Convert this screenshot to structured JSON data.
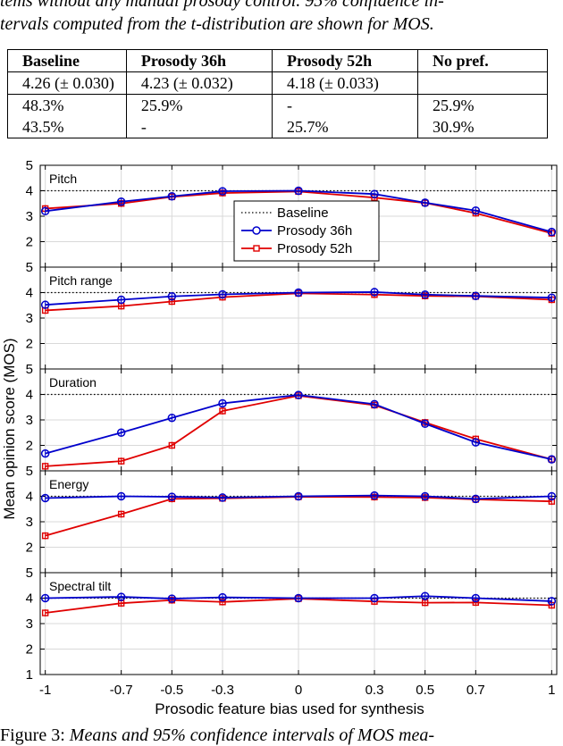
{
  "caption_top": {
    "line1": "tems without any manual prosody control. 95% confidence in-",
    "line2": "tervals computed from the t-distribution are shown for MOS."
  },
  "table": {
    "headers": [
      "Baseline",
      "Prosody 36h",
      "Prosody 52h",
      "No pref."
    ],
    "rows": [
      [
        "4.26 (± 0.030)",
        "4.23 (± 0.032)",
        "4.18 (± 0.033)",
        ""
      ],
      [
        "48.3%",
        "25.9%",
        "-",
        "25.9%"
      ],
      [
        "43.5%",
        "-",
        "25.7%",
        "30.9%"
      ]
    ]
  },
  "caption_bottom": {
    "prefix": "Figure 3:",
    "text": "Means and 95% confidence intervals of MOS mea-"
  },
  "chart_data": {
    "type": "line",
    "xlabel": "Prosodic feature bias used for synthesis",
    "ylabel": "Mean opinion score (MOS)",
    "x": [
      -1,
      -0.7,
      -0.5,
      -0.3,
      0,
      0.3,
      0.5,
      0.7,
      1
    ],
    "x_tick_labels": [
      "-1",
      "-0.7",
      "-0.5",
      "-0.3",
      "0",
      "0.3",
      "0.5",
      "0.7",
      "1"
    ],
    "xlim": [
      -1.02,
      1.02
    ],
    "ylim": [
      1,
      5
    ],
    "y_tick_labels": [
      "1",
      "2",
      "3",
      "4",
      "5"
    ],
    "grid": true,
    "legend": {
      "placement": "inside first panel, center-right",
      "entries": [
        "Baseline",
        "Prosody 36h",
        "Prosody 52h"
      ]
    },
    "colors": {
      "baseline": "#000000",
      "p36": "#0000cc",
      "p52": "#e00000"
    },
    "baseline_value": 4.0,
    "panels": [
      {
        "title": "Pitch",
        "p36": [
          3.2,
          3.57,
          3.78,
          3.98,
          4.0,
          3.87,
          3.53,
          3.22,
          2.38
        ],
        "p52": [
          3.3,
          3.5,
          3.76,
          3.91,
          3.97,
          3.73,
          3.52,
          3.12,
          2.33
        ]
      },
      {
        "title": "Pitch range",
        "p36": [
          3.52,
          3.72,
          3.85,
          3.93,
          4.0,
          4.02,
          3.92,
          3.87,
          3.8
        ],
        "p52": [
          3.3,
          3.47,
          3.65,
          3.82,
          3.97,
          3.92,
          3.87,
          3.85,
          3.72
        ]
      },
      {
        "title": "Duration",
        "p36": [
          1.68,
          2.5,
          3.08,
          3.65,
          3.98,
          3.62,
          2.85,
          2.12,
          1.45
        ],
        "p52": [
          1.18,
          1.38,
          2.0,
          3.35,
          3.95,
          3.58,
          2.9,
          2.25,
          1.45
        ]
      },
      {
        "title": "Energy",
        "p36": [
          3.93,
          4.0,
          3.98,
          3.95,
          4.0,
          4.03,
          4.0,
          3.9,
          4.0
        ],
        "p52": [
          2.45,
          3.3,
          3.9,
          3.92,
          3.98,
          3.97,
          3.95,
          3.88,
          3.8
        ]
      },
      {
        "title": "Spectral tilt",
        "p36": [
          4.0,
          4.05,
          3.98,
          4.03,
          4.0,
          4.0,
          4.08,
          4.0,
          3.88
        ],
        "p52": [
          3.42,
          3.8,
          3.92,
          3.85,
          3.98,
          3.87,
          3.82,
          3.83,
          3.72
        ]
      }
    ]
  }
}
